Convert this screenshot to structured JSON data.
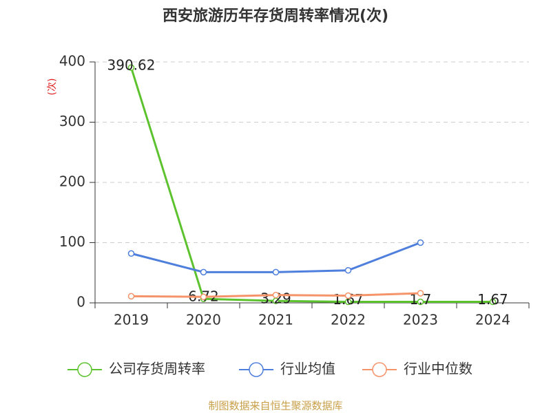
{
  "chart_data": {
    "type": "line",
    "title": "西安旅游历年存货周转率情况(次)",
    "y_label": "(次)",
    "categories": [
      "2019",
      "2020",
      "2021",
      "2022",
      "2023",
      "2024"
    ],
    "series": [
      {
        "name": "公司存货周转率",
        "color": "#5cc22e",
        "values": [
          390.62,
          6.72,
          3.29,
          1.67,
          1.7,
          1.67
        ],
        "show_labels": true
      },
      {
        "name": "行业均值",
        "color": "#4f7fdc",
        "values": [
          82,
          51,
          51,
          54,
          100,
          null
        ],
        "show_labels": false
      },
      {
        "name": "行业中位数",
        "color": "#f5936a",
        "values": [
          11,
          10,
          13,
          12,
          16,
          null
        ],
        "show_labels": false
      }
    ],
    "ylim": [
      0,
      400
    ],
    "yticks": [
      0,
      100,
      200,
      300,
      400
    ],
    "grid": true,
    "legend": "bottom",
    "source": "制图数据来自恒生聚源数据库"
  }
}
